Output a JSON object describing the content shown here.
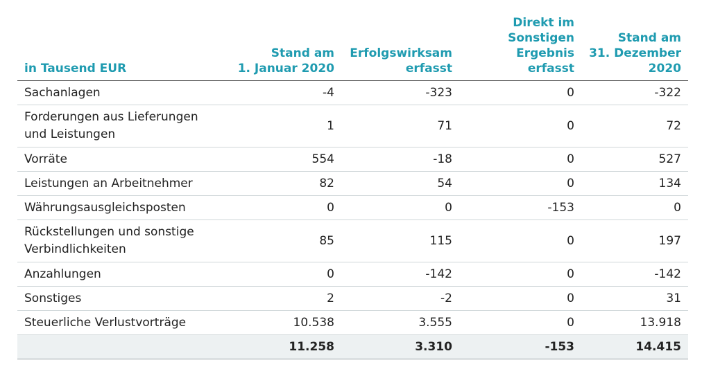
{
  "table": {
    "headers": [
      "in Tausend EUR",
      "Stand am\n1. Januar 2020",
      "Erfolgswirksam\nerfasst",
      "Direkt im\nSonstigen\nErgebnis erfasst",
      "Stand am\n31. Dezember\n2020"
    ],
    "header_color": "#1f9bb0",
    "rows": [
      {
        "label": "Sachanlagen",
        "values": [
          "-4",
          "-323",
          "0",
          "-322"
        ],
        "lines": 1
      },
      {
        "label": "Forderungen aus Lieferungen\nund Leistungen",
        "values": [
          "1",
          "71",
          "0",
          "72"
        ],
        "lines": 2
      },
      {
        "label": "Vorräte",
        "values": [
          "554",
          "-18",
          "0",
          "527"
        ],
        "lines": 1
      },
      {
        "label": "Leistungen an Arbeitnehmer",
        "values": [
          "82",
          "54",
          "0",
          "134"
        ],
        "lines": 1
      },
      {
        "label": "Währungsausgleichsposten",
        "values": [
          "0",
          "0",
          "-153",
          "0"
        ],
        "lines": 1
      },
      {
        "label": "Rückstellungen und sonstige\nVerbindlichkeiten",
        "values": [
          "85",
          "115",
          "0",
          "197"
        ],
        "lines": 2
      },
      {
        "label": "Anzahlungen",
        "values": [
          "0",
          "-142",
          "0",
          "-142"
        ],
        "lines": 1
      },
      {
        "label": "Sonstiges",
        "values": [
          "2",
          "-2",
          "0",
          "31"
        ],
        "lines": 1
      },
      {
        "label": "Steuerliche Verlustvorträge",
        "values": [
          "10.538",
          "3.555",
          "0",
          "13.918"
        ],
        "lines": 1
      }
    ],
    "total": {
      "label": "",
      "values": [
        "11.258",
        "3.310",
        "-153",
        "14.415"
      ]
    }
  }
}
